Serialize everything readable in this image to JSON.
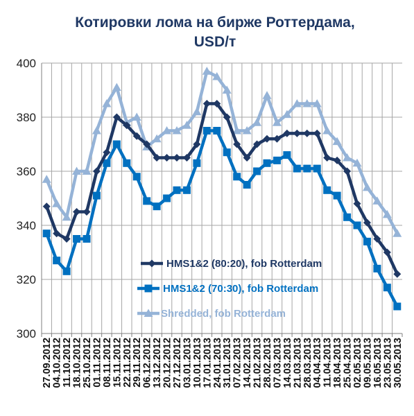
{
  "chart_data": {
    "type": "line",
    "title": "Котировки лома на бирже Роттердама, USD/т",
    "title_lines": [
      "Котировки лома на бирже Роттердама,",
      "USD/т"
    ],
    "xlabel": "",
    "ylabel": "",
    "ylim": [
      300,
      400
    ],
    "y_ticks": [
      "300",
      "320",
      "340",
      "360",
      "380",
      "400"
    ],
    "grid": true,
    "legend_position": "inside-bottom-center",
    "categories": [
      "27.09.2012",
      "04.10.2012",
      "11.10.2012",
      "18.10.2012",
      "25.10.2012",
      "01.11.2012",
      "08.11.2012",
      "15.11.2012",
      "22.11.2012",
      "29.11.2012",
      "06.12.2012",
      "13.12.2012",
      "20.12.2012",
      "27.12.2012",
      "03.01.2013",
      "10.01.2013",
      "17.01.2013",
      "24.01.2013",
      "31.01.2013",
      "07.02.2013",
      "14.02.2013",
      "21.02.2013",
      "28.02.2013",
      "07.03.2013",
      "14.03.2013",
      "21.03.2013",
      "28.03.2013",
      "04.04.2013",
      "11.04.2013",
      "18.04.2013",
      "25.04.2013",
      "02.05.2013",
      "09.05.2013",
      "16.05.2013",
      "23.05.2013",
      "30.05.2013"
    ],
    "x_tick_labels": [
      "27.09.2012",
      "04.10.2012",
      "11.10.2012",
      "18.10.2012",
      "25.10.2012",
      "01.11.2012",
      "08.11.2012",
      "15.11.2012",
      "22.11.2012",
      "29.11.2012",
      "06.12.2012",
      "13.12.2012",
      "20.12.2012",
      "27.12.2012",
      "03.01.2013",
      "10.01.2013",
      "17.01.2013",
      "24.01.2013",
      "31.01.2013",
      "07.02.2013",
      "14.02.2013",
      "21.02.2013",
      "28.02.2013",
      "07.03.2013",
      "14.03.2013",
      "21.03.2013",
      "28.03.2013",
      "04.04.2013",
      "11.04.2013",
      "18.04.2013",
      "25.04.2013",
      "02.05.2013",
      "09.05.2013",
      "16.05.2013",
      "23.05.2013",
      "30.05.2013"
    ],
    "series": [
      {
        "name": "HMS1&2 (80:20), fob Rotterdam",
        "color": "#1f3864",
        "marker": "diamond",
        "values": [
          347,
          337,
          335,
          345,
          345,
          360,
          367,
          380,
          377,
          373,
          370,
          365,
          365,
          365,
          365,
          370,
          385,
          385,
          380,
          370,
          365,
          370,
          372,
          372,
          374,
          374,
          374,
          374,
          365,
          364,
          360,
          348,
          341,
          335,
          330,
          322
        ]
      },
      {
        "name": "HMS1&2 (70:30), fob Rotterdam",
        "color": "#0070c0",
        "marker": "square",
        "values": [
          337,
          327,
          323,
          335,
          335,
          351,
          363,
          370,
          363,
          358,
          349,
          347,
          350,
          353,
          353,
          363,
          375,
          375,
          367,
          358,
          355,
          360,
          363,
          364,
          366,
          361,
          361,
          361,
          353,
          351,
          343,
          340,
          334,
          324,
          317,
          310
        ]
      },
      {
        "name": "Shredded, fob Rotterdam",
        "color": "#95b3d7",
        "marker": "triangle",
        "values": [
          357,
          348,
          343,
          360,
          360,
          375,
          385,
          391,
          378,
          380,
          369,
          372,
          375,
          375,
          377,
          382,
          397,
          395,
          390,
          375,
          375,
          378,
          388,
          378,
          381,
          385,
          385,
          385,
          375,
          371,
          365,
          363,
          354,
          349,
          344,
          337
        ]
      }
    ]
  }
}
